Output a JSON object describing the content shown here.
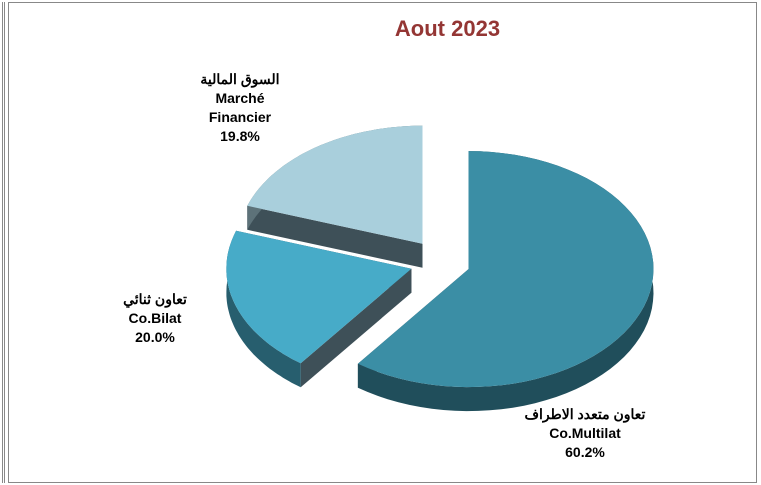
{
  "chart_data": {
    "type": "pie3d",
    "title": "Aout 2023",
    "categories": [
      [
        "تعاون متعدد الاطراف",
        "Co.Multilat"
      ],
      [
        "تعاون ثنائي",
        "Co.Bilat"
      ],
      [
        "السوق المالية",
        "Marché Financier"
      ]
    ],
    "values": [
      60.2,
      20.0,
      19.8
    ],
    "value_labels": [
      "60.2%",
      "20.0%",
      "19.8%"
    ],
    "colors": [
      "#3b8ea5",
      "#47abc8",
      "#a9cfdc"
    ]
  }
}
